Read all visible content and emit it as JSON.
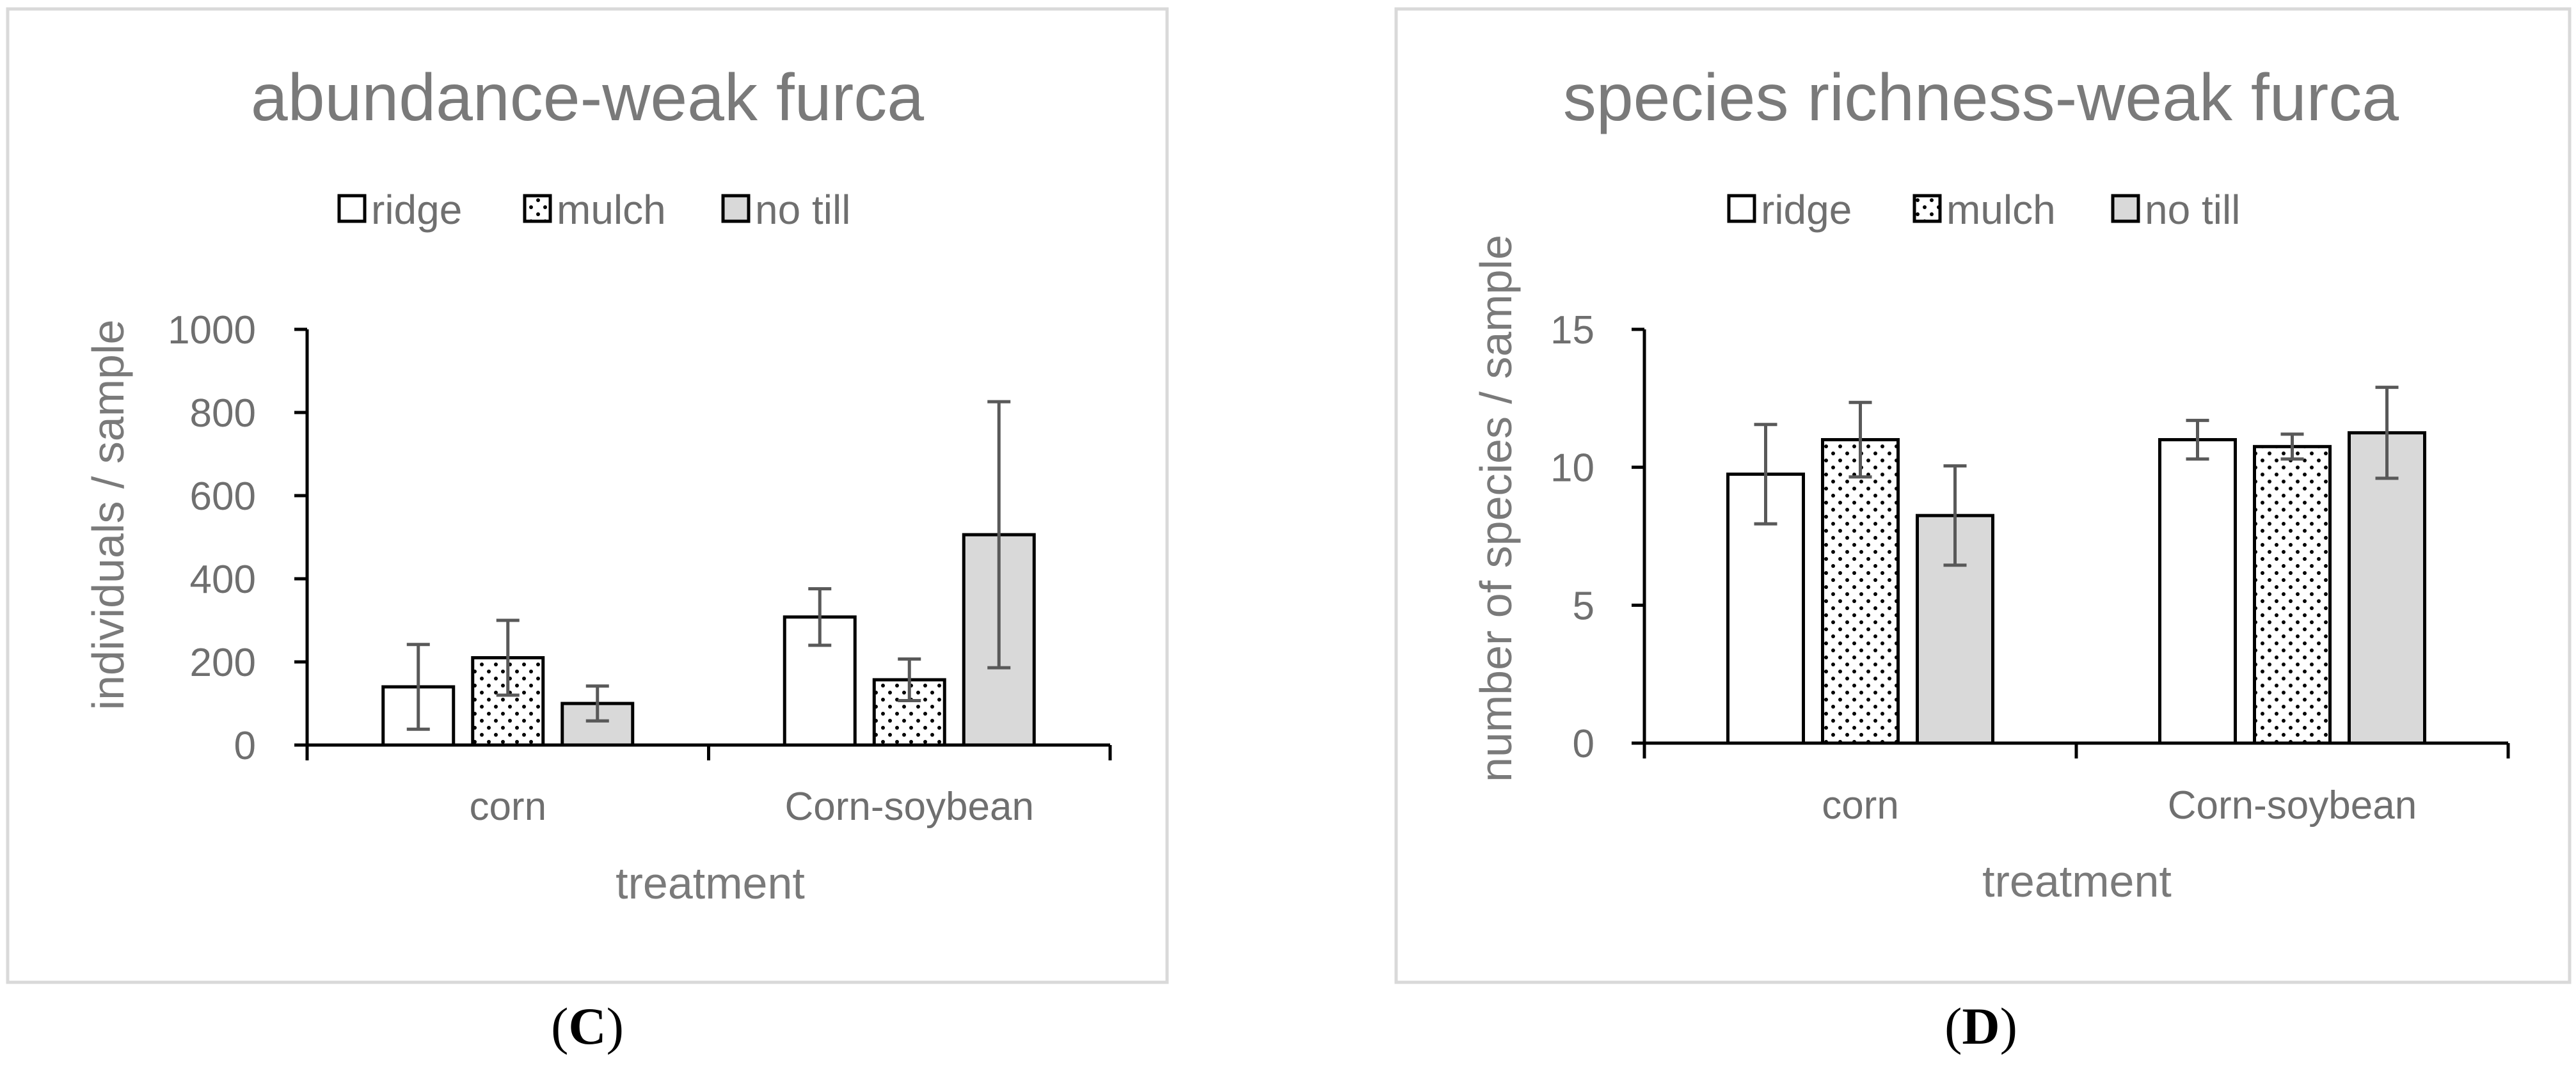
{
  "chart_data": [
    {
      "type": "bar",
      "panel_label": "(C)",
      "panel_label_parts": [
        "(",
        "C",
        ")"
      ],
      "title": "abundance-weak furca",
      "xlabel": "treatment",
      "ylabel": "individuals / sample",
      "ylim": [
        0,
        1000
      ],
      "yticks": [
        0,
        200,
        400,
        600,
        800,
        1000
      ],
      "categories": [
        "corn",
        "Corn-soybean"
      ],
      "legend_position": "top",
      "series": [
        {
          "name": "ridge",
          "pattern": "white",
          "values": [
            140,
            308
          ],
          "errors": [
            102,
            68
          ]
        },
        {
          "name": "mulch",
          "pattern": "dots",
          "values": [
            210,
            157
          ],
          "errors": [
            90,
            50
          ]
        },
        {
          "name": "no till",
          "pattern": "gray",
          "values": [
            100,
            506
          ],
          "errors": [
            42,
            320
          ]
        }
      ]
    },
    {
      "type": "bar",
      "panel_label": "(D)",
      "panel_label_parts": [
        "(",
        "D",
        ")"
      ],
      "title": "species richness-weak furca",
      "xlabel": "treatment",
      "ylabel": "number of species / sample",
      "ylim": [
        0,
        15
      ],
      "yticks": [
        0,
        5,
        10,
        15
      ],
      "categories": [
        "corn",
        "Corn-soybean"
      ],
      "legend_position": "top",
      "series": [
        {
          "name": "ridge",
          "pattern": "white",
          "values": [
            9.75,
            11.0
          ],
          "errors": [
            1.8,
            0.7
          ]
        },
        {
          "name": "mulch",
          "pattern": "dots",
          "values": [
            11.0,
            10.75
          ],
          "errors": [
            1.35,
            0.45
          ]
        },
        {
          "name": "no till",
          "pattern": "gray",
          "values": [
            8.25,
            11.25
          ],
          "errors": [
            1.8,
            1.65
          ]
        }
      ]
    }
  ],
  "colors": {
    "frame": "#d9d9d9",
    "text": "#6f6f6f",
    "bar_outline": "#000000",
    "bar_white": "#ffffff",
    "bar_gray": "#d9d9d9",
    "error_bar": "#595959"
  }
}
